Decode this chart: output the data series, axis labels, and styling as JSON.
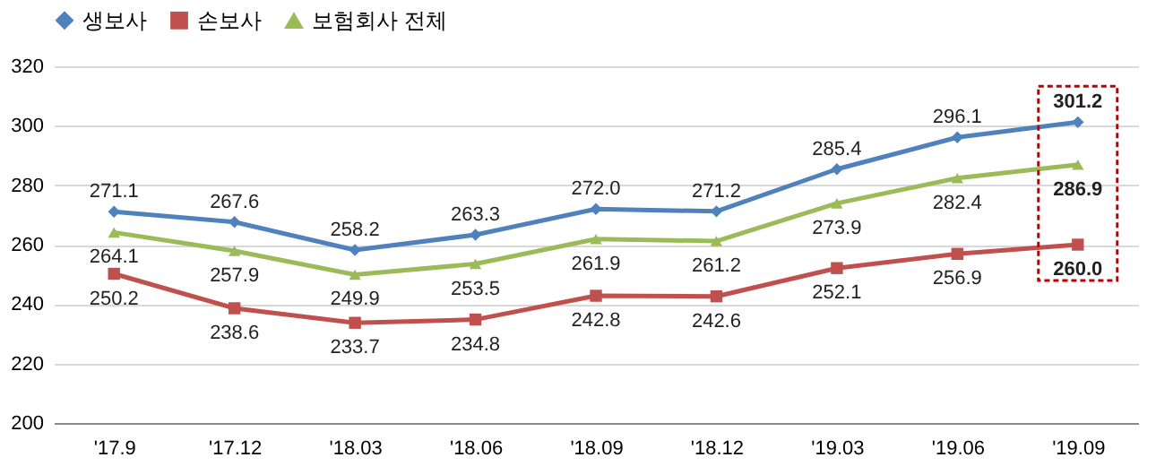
{
  "chart_data": {
    "type": "line",
    "categories": [
      "'17.9",
      "'17.12",
      "'18.03",
      "'18.06",
      "'18.09",
      "'18.12",
      "'19.03",
      "'19.06",
      "'19.09"
    ],
    "series": [
      {
        "name": "생보사",
        "color": "#4f81bd",
        "marker": "diamond",
        "values": [
          271.1,
          267.6,
          258.2,
          263.3,
          272.0,
          271.2,
          285.4,
          296.1,
          301.2
        ],
        "value_labels": [
          "271.1",
          "267.6",
          "258.2",
          "263.3",
          "272.0",
          "271.2",
          "285.4",
          "296.1",
          "301.2"
        ]
      },
      {
        "name": "손보사",
        "color": "#c0504d",
        "marker": "square",
        "values": [
          250.2,
          238.6,
          233.7,
          234.8,
          242.8,
          242.6,
          252.1,
          256.9,
          260.0
        ],
        "value_labels": [
          "250.2",
          "238.6",
          "233.7",
          "234.8",
          "242.8",
          "242.6",
          "252.1",
          "256.9",
          "260.0"
        ]
      },
      {
        "name": "보험회사 전체",
        "color": "#9bbb59",
        "marker": "triangle",
        "values": [
          264.1,
          257.9,
          249.9,
          253.5,
          261.9,
          261.2,
          273.9,
          282.4,
          286.9
        ],
        "value_labels": [
          "264.1",
          "257.9",
          "249.9",
          "253.5",
          "261.9",
          "261.2",
          "273.9",
          "282.4",
          "286.9"
        ]
      }
    ],
    "ylim": [
      200,
      320
    ],
    "yticks": [
      200,
      220,
      240,
      260,
      280,
      300,
      320
    ],
    "grid": "y",
    "legend": "top",
    "line_style": "solid"
  }
}
